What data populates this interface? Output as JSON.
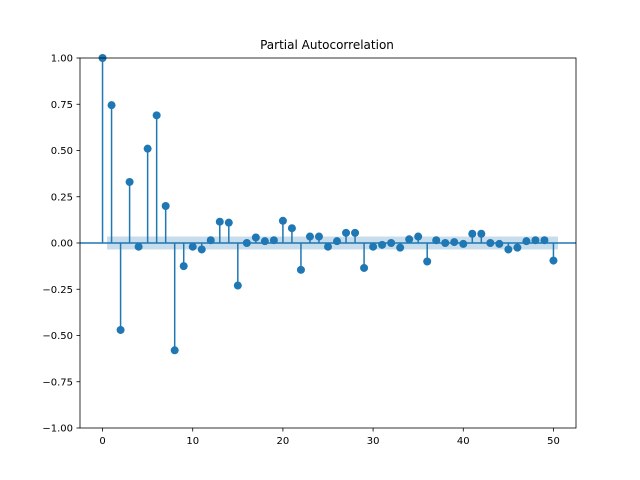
{
  "chart_data": {
    "type": "stem",
    "title": "Partial Autocorrelation",
    "xlabel": "",
    "ylabel": "",
    "xlim": [
      -2.5,
      52.5
    ],
    "ylim": [
      -1.0,
      1.0
    ],
    "x_ticks": [
      0,
      10,
      20,
      30,
      40,
      50
    ],
    "y_ticks": [
      -1.0,
      -0.75,
      -0.5,
      -0.25,
      0.0,
      0.25,
      0.5,
      0.75,
      1.0
    ],
    "x_tick_labels": [
      "0",
      "10",
      "20",
      "30",
      "40",
      "50"
    ],
    "y_tick_labels": [
      "−1.00",
      "−0.75",
      "−0.50",
      "−0.25",
      "0.00",
      "0.25",
      "0.50",
      "0.75",
      "1.00"
    ],
    "confidence_band": 0.035,
    "grid": false,
    "colors": {
      "stem": "#1f77b4",
      "band": "#1f77b4"
    },
    "x": [
      0,
      1,
      2,
      3,
      4,
      5,
      6,
      7,
      8,
      9,
      10,
      11,
      12,
      13,
      14,
      15,
      16,
      17,
      18,
      19,
      20,
      21,
      22,
      23,
      24,
      25,
      26,
      27,
      28,
      29,
      30,
      31,
      32,
      33,
      34,
      35,
      36,
      37,
      38,
      39,
      40,
      41,
      42,
      43,
      44,
      45,
      46,
      47,
      48,
      49,
      50
    ],
    "values": [
      1.0,
      0.745,
      -0.47,
      0.33,
      -0.02,
      0.51,
      0.69,
      0.2,
      -0.58,
      -0.125,
      -0.02,
      -0.035,
      0.015,
      0.115,
      0.11,
      -0.23,
      0.0,
      0.03,
      0.01,
      0.015,
      0.12,
      0.08,
      -0.145,
      0.035,
      0.035,
      -0.02,
      0.01,
      0.055,
      0.055,
      -0.135,
      -0.02,
      -0.01,
      0.0,
      -0.025,
      0.02,
      0.035,
      -0.1,
      0.015,
      0.0,
      0.005,
      -0.005,
      0.05,
      0.05,
      0.0,
      -0.005,
      -0.035,
      -0.025,
      0.01,
      0.015,
      0.015,
      -0.095
    ]
  }
}
